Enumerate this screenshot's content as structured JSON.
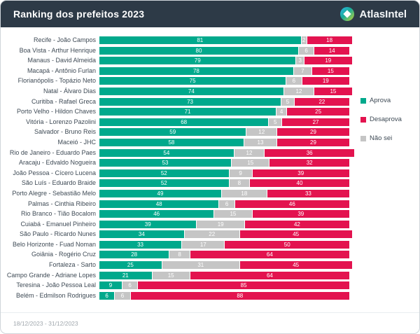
{
  "header": {
    "title": "Ranking dos prefeitos 2023",
    "brand": "AtlasIntel"
  },
  "legend": {
    "items": [
      {
        "label": "Aprova",
        "color": "#00a98c"
      },
      {
        "label": "Desaprova",
        "color": "#e3134f"
      },
      {
        "label": "Não sei",
        "color": "#c5c5c5"
      }
    ]
  },
  "footer": {
    "period": "18/12/2023 - 31/12/2023"
  },
  "chart_data": {
    "type": "bar",
    "orientation": "horizontal",
    "stacked": true,
    "title": "Ranking dos prefeitos 2023",
    "xlim": [
      0,
      100
    ],
    "grid": false,
    "legend_position": "right",
    "period": "18/12/2023 - 31/12/2023",
    "categories": [
      "Recife - João Campos",
      "Boa Vista - Arthur Henrique",
      "Manaus - David Almeida",
      "Macapá - Antônio Furlan",
      "Florianópolis - Topázio Neto",
      "Natal - Álvaro Dias",
      "Curitiba - Rafael Greca",
      "Porto Velho - Hildon Chaves",
      "Vitória - Lorenzo Pazolini",
      "Salvador - Bruno Reis",
      "Maceió - JHC",
      "Rio de Janeiro - Eduardo Paes",
      "Aracaju - Edvaldo Nogueira",
      "João Pessoa - Cícero Lucena",
      "São Luís - Eduardo Braide",
      "Porto Alegre - Sebastião Melo",
      "Palmas - Cinthia Ribeiro",
      "Rio Branco - Tião Bocalom",
      "Cuiabá - Emanuel Pinheiro",
      "São Paulo - Ricardo Nunes",
      "Belo Horizonte - Fuad Noman",
      "Goiânia - Rogério Cruz",
      "Fortaleza - Sarto",
      "Campo Grande - Adriane Lopes",
      "Teresina - João Pessoa Leal",
      "Belém - Edmilson Rodrigues"
    ],
    "series": [
      {
        "name": "Aprova",
        "key": "aprova",
        "color": "#00a98c",
        "values": [
          81,
          80,
          79,
          78,
          75,
          74,
          73,
          71,
          68,
          59,
          58,
          54,
          53,
          52,
          52,
          49,
          48,
          46,
          39,
          34,
          33,
          28,
          25,
          21,
          9,
          6
        ]
      },
      {
        "name": "Não sei",
        "key": "nao-sei",
        "color": "#c5c5c5",
        "values": [
          2,
          6,
          3,
          7,
          6,
          12,
          5,
          4,
          5,
          12,
          13,
          12,
          15,
          9,
          8,
          18,
          6,
          15,
          19,
          22,
          17,
          8,
          31,
          15,
          6,
          6
        ]
      },
      {
        "name": "Desaprova",
        "key": "desaprova",
        "color": "#e3134f",
        "values": [
          18,
          14,
          19,
          15,
          19,
          15,
          22,
          25,
          27,
          29,
          29,
          36,
          32,
          39,
          40,
          33,
          46,
          39,
          42,
          45,
          50,
          64,
          45,
          64,
          85,
          88
        ]
      }
    ]
  }
}
